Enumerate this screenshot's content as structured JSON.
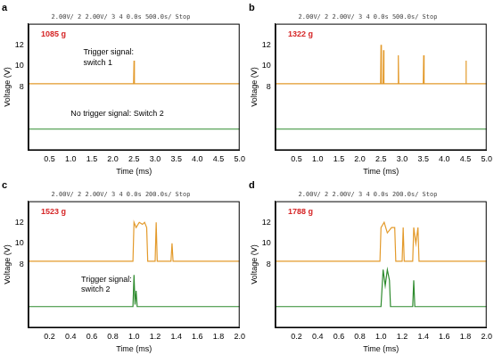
{
  "chart_data": [
    {
      "type": "line",
      "title": "a",
      "subtitle": "2.00V/ 2 2.00V/ 3 4 0.0s 500.0s/ Stop",
      "x_label": "Time (ms)",
      "y_label": "Voltage (V)",
      "xlim": [
        0,
        5
      ],
      "xticks": [
        0.5,
        {
          "value": 1,
          "label": "1.0"
        },
        1.5,
        {
          "value": 2,
          "label": "2.0"
        },
        2.5,
        {
          "value": 3,
          "label": "3.0"
        },
        3.5,
        {
          "value": 4,
          "label": "4.0"
        },
        4.5,
        {
          "value": 5,
          "label": "5.0"
        }
      ],
      "ylim": [
        2,
        14
      ],
      "yticks": [
        8,
        10,
        12
      ],
      "grid": false,
      "series": [
        {
          "color": "#e39a2b",
          "x": [
            0,
            2.49,
            2.5,
            2.51,
            2.52,
            5
          ],
          "values": [
            8.3,
            8.3,
            10.5,
            8.3,
            8.3,
            8.3
          ]
        },
        {
          "color": "#2e8b2e",
          "x": [
            0,
            5
          ],
          "values": [
            4,
            4
          ]
        }
      ],
      "annotations": [
        {
          "text": "1085 g",
          "x": 0.3,
          "y": 13,
          "color": "#d62728"
        },
        {
          "text": "Trigger signal:",
          "x": 1.3,
          "y": 11.3,
          "color": "#000000"
        },
        {
          "text": "switch 1",
          "x": 1.3,
          "y": 10.3,
          "color": "#000000"
        },
        {
          "text": "No trigger signal: Switch 2",
          "x": 1.0,
          "y": 5.5,
          "color": "#000000"
        }
      ]
    },
    {
      "type": "line",
      "title": "b",
      "subtitle": "2.00V/ 2 2.00V/ 3 4 0.0s 500.0s/ Stop",
      "x_label": "Time (ms)",
      "y_label": "Voltage (V)",
      "xlim": [
        0,
        5
      ],
      "xticks": [
        0.5,
        {
          "value": 1,
          "label": "1.0"
        },
        1.5,
        {
          "value": 2,
          "label": "2.0"
        },
        2.5,
        {
          "value": 3,
          "label": "3.0"
        },
        3.5,
        {
          "value": 4,
          "label": "4.0"
        },
        4.5,
        {
          "value": 5,
          "label": "5.0"
        }
      ],
      "ylim": [
        2,
        14
      ],
      "yticks": [
        8,
        10,
        12
      ],
      "grid": false,
      "series": [
        {
          "color": "#e39a2b",
          "x": [
            0,
            2.49,
            2.5,
            2.51,
            2.55,
            2.56,
            2.57,
            2.9,
            2.91,
            2.92,
            3.5,
            3.51,
            3.52,
            4.5,
            4.51,
            4.52,
            5
          ],
          "values": [
            8.3,
            8.3,
            12,
            8.3,
            8.3,
            11.5,
            8.3,
            8.3,
            11,
            8.3,
            8.3,
            11,
            8.3,
            8.3,
            10.5,
            8.3,
            8.3
          ]
        },
        {
          "color": "#2e8b2e",
          "x": [
            0,
            5
          ],
          "values": [
            4,
            4
          ]
        }
      ],
      "annotations": [
        {
          "text": "1322 g",
          "x": 0.3,
          "y": 13,
          "color": "#d62728"
        }
      ]
    },
    {
      "type": "line",
      "title": "c",
      "subtitle": "2.00V/ 2 2.00V/ 3 4 0.0s 200.0s/ Stop",
      "x_label": "Time (ms)",
      "y_label": "Voltage (V)",
      "xlim": [
        0,
        2
      ],
      "xticks": [
        0.2,
        0.4,
        0.6,
        0.8,
        {
          "value": 1,
          "label": "1.0"
        },
        1.2,
        1.4,
        1.6,
        1.8,
        {
          "value": 2,
          "label": "2.0"
        }
      ],
      "ylim": [
        2,
        14
      ],
      "yticks": [
        8,
        10,
        12
      ],
      "grid": false,
      "series": [
        {
          "color": "#e39a2b",
          "x": [
            0,
            0.99,
            1.0,
            1.02,
            1.05,
            1.08,
            1.1,
            1.12,
            1.13,
            1.2,
            1.21,
            1.22,
            1.35,
            1.36,
            1.37,
            2
          ],
          "values": [
            8.3,
            8.3,
            12,
            11.5,
            12,
            11.8,
            12,
            11.5,
            8.3,
            8.3,
            12,
            8.3,
            8.3,
            10,
            8.3,
            8.3
          ]
        },
        {
          "color": "#2e8b2e",
          "x": [
            0,
            0.99,
            1.0,
            1.01,
            1.02,
            1.03,
            2
          ],
          "values": [
            4,
            4,
            7,
            4.2,
            5.5,
            4,
            4
          ]
        }
      ],
      "annotations": [
        {
          "text": "1523 g",
          "x": 0.12,
          "y": 13,
          "color": "#d62728"
        },
        {
          "text": "Trigger signal:",
          "x": 0.5,
          "y": 6.6,
          "color": "#000000"
        },
        {
          "text": "switch 2",
          "x": 0.5,
          "y": 5.6,
          "color": "#000000"
        }
      ]
    },
    {
      "type": "line",
      "title": "d",
      "subtitle": "2.00V/ 2 2.00V/ 3 4 0.0s 200.0s/ Stop",
      "x_label": "Time (ms)",
      "y_label": "Voltage (V)",
      "xlim": [
        0,
        2
      ],
      "xticks": [
        0.2,
        0.4,
        0.6,
        0.8,
        {
          "value": 1,
          "label": "1.0"
        },
        1.2,
        1.4,
        1.6,
        1.8,
        {
          "value": 2,
          "label": "2.0"
        }
      ],
      "ylim": [
        2,
        14
      ],
      "yticks": [
        8,
        10,
        12
      ],
      "grid": false,
      "series": [
        {
          "color": "#e39a2b",
          "x": [
            0,
            0.99,
            1.0,
            1.03,
            1.06,
            1.1,
            1.13,
            1.14,
            1.2,
            1.21,
            1.22,
            1.3,
            1.31,
            1.33,
            1.35,
            1.36,
            2
          ],
          "values": [
            8.3,
            8.3,
            11.5,
            12,
            11,
            11.5,
            11.5,
            8.3,
            8.3,
            11.5,
            8.3,
            8.3,
            11.5,
            10,
            11.5,
            8.3,
            8.3
          ]
        },
        {
          "color": "#2e8b2e",
          "x": [
            0,
            1.0,
            1.02,
            1.04,
            1.06,
            1.08,
            1.09,
            1.3,
            1.31,
            1.32,
            2
          ],
          "values": [
            4,
            4,
            7.5,
            6,
            7.5,
            6.5,
            4,
            4,
            6.5,
            4,
            4
          ]
        }
      ],
      "annotations": [
        {
          "text": "1788 g",
          "x": 0.12,
          "y": 13,
          "color": "#d62728"
        }
      ]
    }
  ]
}
